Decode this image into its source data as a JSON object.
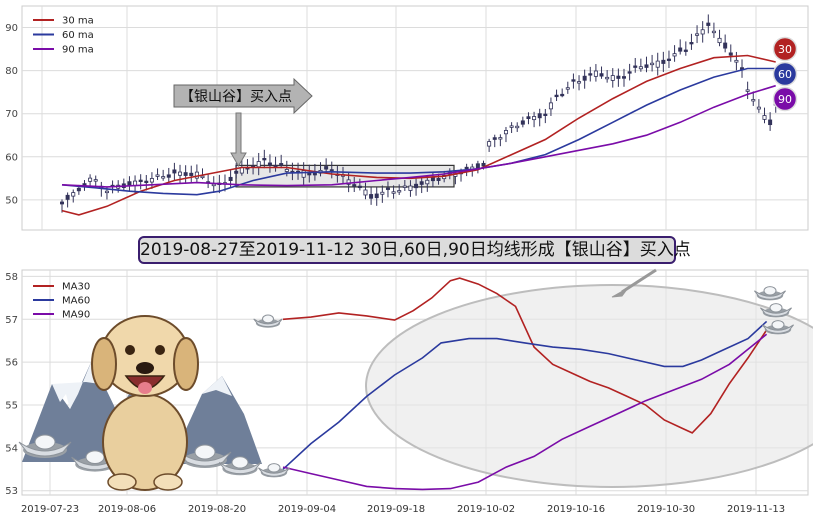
{
  "banner": "2019-08-27至2019-11-12 30日,60日,90日均线形成【银山谷】买入点",
  "annotation": "【银山谷】买入点",
  "colors": {
    "ma30": "#b22222",
    "ma60": "#2b3a9e",
    "ma90": "#7a0ca8",
    "candle": "#33335a",
    "grid": "#dcdcdc"
  },
  "chart_data": [
    {
      "type": "candlestick",
      "title": "",
      "legend": [
        "30 ma",
        "60 ma",
        "90 ma"
      ],
      "legend_placement": "top-left",
      "ylim": [
        43,
        95
      ],
      "yticks": [
        50,
        60,
        70,
        80,
        90
      ],
      "grid": true,
      "badges": [
        "30",
        "60",
        "90"
      ],
      "price_path": [
        [
          0,
          49.5
        ],
        [
          3,
          52
        ],
        [
          5,
          55
        ],
        [
          8,
          52.5
        ],
        [
          12,
          53.5
        ],
        [
          16,
          55
        ],
        [
          20,
          56
        ],
        [
          24,
          56
        ],
        [
          28,
          53
        ],
        [
          32,
          57
        ],
        [
          36,
          59
        ],
        [
          40,
          57
        ],
        [
          44,
          56
        ],
        [
          48,
          57
        ],
        [
          51,
          54.5
        ],
        [
          53,
          53
        ],
        [
          55,
          50.5
        ],
        [
          58,
          52
        ],
        [
          62,
          53
        ],
        [
          65,
          54
        ],
        [
          68,
          55.5
        ],
        [
          72,
          57
        ],
        [
          75,
          58
        ],
        [
          76,
          63
        ],
        [
          79,
          66
        ],
        [
          82,
          68
        ],
        [
          86,
          70
        ],
        [
          88,
          74
        ],
        [
          91,
          77
        ],
        [
          95,
          79.5
        ],
        [
          99,
          78
        ],
        [
          103,
          81
        ],
        [
          107,
          82
        ],
        [
          111,
          85
        ],
        [
          113,
          88
        ],
        [
          115,
          91
        ],
        [
          117,
          87
        ],
        [
          119,
          84
        ],
        [
          121,
          80
        ],
        [
          122,
          76
        ],
        [
          124,
          71
        ],
        [
          126,
          68
        ],
        [
          127,
          72
        ]
      ],
      "ma_series": [
        {
          "name": "30 ma",
          "points": [
            [
              0,
              47.5
            ],
            [
              3,
              46.5
            ],
            [
              8,
              48.5
            ],
            [
              14,
              52
            ],
            [
              20,
              54.5
            ],
            [
              26,
              56
            ],
            [
              32,
              57.5
            ],
            [
              40,
              57.5
            ],
            [
              48,
              56
            ],
            [
              56,
              55.2
            ],
            [
              62,
              55
            ],
            [
              68,
              55.5
            ],
            [
              74,
              57
            ],
            [
              80,
              60.5
            ],
            [
              86,
              64
            ],
            [
              92,
              69
            ],
            [
              98,
              73.5
            ],
            [
              104,
              77.5
            ],
            [
              110,
              80.5
            ],
            [
              116,
              83
            ],
            [
              122,
              83.5
            ],
            [
              127,
              82
            ]
          ]
        },
        {
          "name": "60 ma",
          "points": [
            [
              0,
              53.5
            ],
            [
              6,
              52.8
            ],
            [
              12,
              52
            ],
            [
              18,
              51.5
            ],
            [
              24,
              51.2
            ],
            [
              28,
              52
            ],
            [
              34,
              54.5
            ],
            [
              40,
              56.2
            ],
            [
              48,
              56.5
            ],
            [
              56,
              56.2
            ],
            [
              62,
              56.2
            ],
            [
              68,
              56.5
            ],
            [
              74,
              57.2
            ],
            [
              80,
              58.5
            ],
            [
              86,
              60.5
            ],
            [
              92,
              64
            ],
            [
              98,
              68
            ],
            [
              104,
              72
            ],
            [
              110,
              75.5
            ],
            [
              116,
              78.5
            ],
            [
              122,
              80.5
            ],
            [
              127,
              80.5
            ]
          ]
        },
        {
          "name": "90 ma",
          "points": [
            [
              0,
              53.5
            ],
            [
              8,
              53
            ],
            [
              16,
              53.5
            ],
            [
              24,
              54
            ],
            [
              32,
              53.5
            ],
            [
              40,
              53.3
            ],
            [
              48,
              53.5
            ],
            [
              56,
              54.5
            ],
            [
              62,
              55.2
            ],
            [
              68,
              56
            ],
            [
              74,
              57.2
            ],
            [
              80,
              58.5
            ],
            [
              86,
              60
            ],
            [
              92,
              61.5
            ],
            [
              98,
              63
            ],
            [
              104,
              65
            ],
            [
              110,
              68
            ],
            [
              116,
              71.5
            ],
            [
              122,
              74.5
            ],
            [
              127,
              76.5
            ]
          ]
        }
      ]
    },
    {
      "type": "line",
      "title": "",
      "legend": [
        "MA30",
        "MA60",
        "MA90"
      ],
      "legend_placement": "top-left",
      "x": [
        "2019-07-23",
        "2019-08-06",
        "2019-08-20",
        "2019-09-04",
        "2019-09-18",
        "2019-10-02",
        "2019-10-16",
        "2019-10-30",
        "2019-11-13"
      ],
      "ylim": [
        52.9,
        58.15
      ],
      "yticks": [
        53,
        54,
        55,
        56,
        57,
        58
      ],
      "grid": true,
      "series": [
        {
          "name": "MA30",
          "points": [
            [
              0,
              57.0
            ],
            [
              3,
              57.05
            ],
            [
              6,
              57.15
            ],
            [
              9,
              57.08
            ],
            [
              12,
              56.98
            ],
            [
              14,
              57.2
            ],
            [
              16,
              57.5
            ],
            [
              18,
              57.9
            ],
            [
              19,
              57.96
            ],
            [
              21,
              57.82
            ],
            [
              23,
              57.6
            ],
            [
              25,
              57.3
            ],
            [
              27,
              56.35
            ],
            [
              29,
              55.95
            ],
            [
              31,
              55.75
            ],
            [
              33,
              55.55
            ],
            [
              35,
              55.4
            ],
            [
              37,
              55.2
            ],
            [
              39,
              55.0
            ],
            [
              41,
              54.65
            ],
            [
              43,
              54.45
            ],
            [
              44,
              54.35
            ],
            [
              46,
              54.8
            ],
            [
              48,
              55.5
            ],
            [
              50,
              56.1
            ],
            [
              52,
              56.75
            ]
          ]
        },
        {
          "name": "MA60",
          "points": [
            [
              0,
              53.5
            ],
            [
              3,
              54.1
            ],
            [
              6,
              54.6
            ],
            [
              9,
              55.2
            ],
            [
              12,
              55.7
            ],
            [
              15,
              56.1
            ],
            [
              17,
              56.45
            ],
            [
              20,
              56.55
            ],
            [
              23,
              56.55
            ],
            [
              26,
              56.45
            ],
            [
              29,
              56.35
            ],
            [
              32,
              56.3
            ],
            [
              35,
              56.2
            ],
            [
              38,
              56.05
            ],
            [
              41,
              55.9
            ],
            [
              43,
              55.9
            ],
            [
              45,
              56.05
            ],
            [
              47,
              56.25
            ],
            [
              50,
              56.55
            ],
            [
              52,
              56.95
            ]
          ]
        },
        {
          "name": "MA90",
          "points": [
            [
              0,
              53.55
            ],
            [
              3,
              53.4
            ],
            [
              6,
              53.25
            ],
            [
              9,
              53.1
            ],
            [
              12,
              53.05
            ],
            [
              15,
              53.03
            ],
            [
              18,
              53.05
            ],
            [
              21,
              53.2
            ],
            [
              24,
              53.55
            ],
            [
              27,
              53.8
            ],
            [
              30,
              54.2
            ],
            [
              33,
              54.5
            ],
            [
              36,
              54.8
            ],
            [
              39,
              55.1
            ],
            [
              42,
              55.35
            ],
            [
              45,
              55.6
            ],
            [
              48,
              55.95
            ],
            [
              50,
              56.3
            ],
            [
              52,
              56.65
            ]
          ]
        }
      ]
    }
  ]
}
